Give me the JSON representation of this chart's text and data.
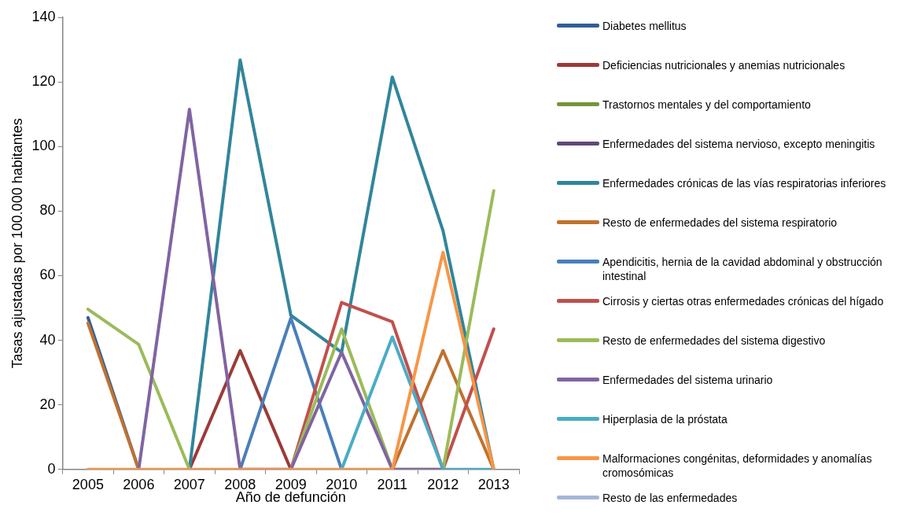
{
  "chart_data": {
    "type": "line",
    "xlabel": "Año de defunción",
    "ylabel": "Tasas ajustadas por 100.000 habitantes",
    "categories": [
      "2005",
      "2006",
      "2007",
      "2008",
      "2009",
      "2010",
      "2011",
      "2012",
      "2013"
    ],
    "ylim": [
      0,
      140
    ],
    "yticks": [
      0,
      20,
      40,
      60,
      80,
      100,
      120,
      140
    ],
    "grid": false,
    "legend": "right",
    "marker": "none",
    "line_style": "solid",
    "series": [
      {
        "name": "Diabetes mellitus",
        "color": "#2e5f9a",
        "values": [
          47,
          0,
          null,
          null,
          null,
          null,
          null,
          null,
          null
        ]
      },
      {
        "name": "Deficiencias nutricionales y anemias nutricionales",
        "color": "#9b3b38",
        "values": [
          null,
          null,
          0,
          36.8,
          0,
          null,
          null,
          null,
          null
        ]
      },
      {
        "name": "Trastornos mentales y del comportamiento",
        "color": "#77933c",
        "values": [
          null,
          null,
          null,
          null,
          null,
          null,
          null,
          null,
          null
        ]
      },
      {
        "name": "Enfermedades del sistema nervioso, excepto meningitis",
        "color": "#5f497a",
        "values": [
          null,
          null,
          null,
          null,
          null,
          null,
          null,
          null,
          null
        ]
      },
      {
        "name": "Enfermedades crónicas de las vías respiratorias inferiores",
        "color": "#31859c",
        "values": [
          null,
          null,
          0,
          126.8,
          47.7,
          36.3,
          121.5,
          73.9,
          0
        ]
      },
      {
        "name": "Resto de enfermedades del sistema respiratorio",
        "color": "#c0722f",
        "values": [
          45.3,
          0,
          null,
          null,
          null,
          null,
          0,
          36.8,
          0
        ]
      },
      {
        "name": "Apendicitis, hernia de la cavidad abdominal y obstrucción intestinal",
        "color": "#4a7ebb",
        "values": [
          null,
          null,
          null,
          0,
          46.8,
          0,
          null,
          null,
          null
        ]
      },
      {
        "name": "Cirrosis y ciertas otras enfermedades crónicas del hígado",
        "color": "#c0504d",
        "values": [
          null,
          null,
          null,
          null,
          0,
          51.7,
          45.7,
          0,
          43.5
        ]
      },
      {
        "name": "Resto de enfermedades del sistema digestivo",
        "color": "#9bbb59",
        "values": [
          49.6,
          38.7,
          0,
          null,
          0,
          43.5,
          0,
          0,
          86.3
        ]
      },
      {
        "name": "Enfermedades del sistema urinario",
        "color": "#8064a2",
        "values": [
          null,
          0,
          111.5,
          0,
          0,
          36.3,
          0,
          0,
          null
        ]
      },
      {
        "name": "Hiperplasia de la próstata",
        "color": "#4bacc6",
        "values": [
          null,
          null,
          null,
          null,
          null,
          0,
          41,
          0,
          0
        ]
      },
      {
        "name": "Malformaciones congénitas, deformidades y anomalías cromosómicas",
        "color": "#f79646",
        "values": [
          0,
          0,
          0,
          0,
          0,
          0,
          0,
          67.2,
          0
        ]
      },
      {
        "name": "Resto de las enfermedades",
        "color": "#a5b6d6",
        "values": [
          null,
          null,
          null,
          null,
          null,
          null,
          null,
          null,
          null
        ]
      }
    ]
  }
}
